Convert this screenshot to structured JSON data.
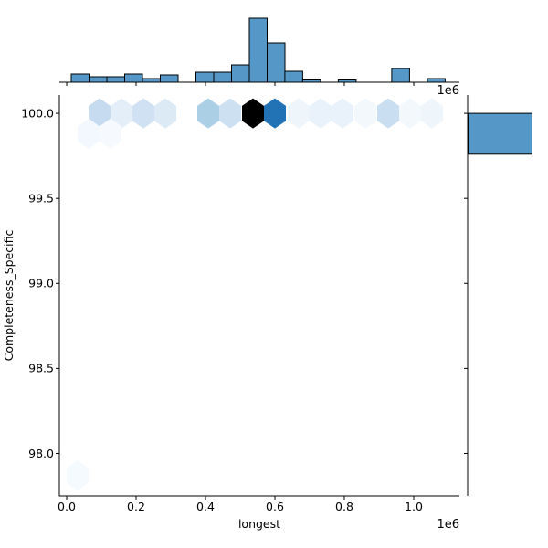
{
  "colors": {
    "bar_fill": "#5598c8",
    "bar_edge": "#000000",
    "axis_line": "#000000",
    "text": "#000000",
    "background": "#ffffff"
  },
  "axes": {
    "xlabel": "longest",
    "ylabel": "Completeness_Specific",
    "offset_label": "1e6",
    "x_ticks": [
      0,
      200000,
      400000,
      600000,
      800000,
      1000000
    ],
    "x_tick_labels": [
      "0.0",
      "0.2",
      "0.4",
      "0.6",
      "0.8",
      "1.0"
    ],
    "y_ticks": [
      100.0,
      99.5,
      99.0,
      98.5,
      98.0
    ],
    "y_tick_labels": [
      "100.0",
      "99.5",
      "99.0",
      "98.5",
      "98.0"
    ],
    "xlim": [
      -21100,
      1131600
    ],
    "ylim": [
      97.75,
      100.108
    ]
  },
  "chart_data": [
    {
      "type": "hexbin",
      "role": "joint-plot",
      "xlabel": "longest",
      "ylabel": "Completeness_Specific",
      "colormap": "light-blue-to-dark (Blues-like), darkest cell near-black",
      "points": [
        {
          "x": 94700,
          "y": 100.0,
          "color": "#c6dbef",
          "intensity": 0.33
        },
        {
          "x": 157900,
          "y": 100.0,
          "color": "#e4eef9",
          "intensity": 0.16
        },
        {
          "x": 221100,
          "y": 100.0,
          "color": "#cfe1f2",
          "intensity": 0.3
        },
        {
          "x": 284200,
          "y": 100.0,
          "color": "#dceaf6",
          "intensity": 0.23
        },
        {
          "x": 407900,
          "y": 100.0,
          "color": "#abd0e6",
          "intensity": 0.42
        },
        {
          "x": 471100,
          "y": 100.0,
          "color": "#cde0f1",
          "intensity": 0.31
        },
        {
          "x": 536800,
          "y": 100.0,
          "color": "#000000",
          "intensity": 1.0
        },
        {
          "x": 600000,
          "y": 100.0,
          "color": "#2272b6",
          "intensity": 0.78
        },
        {
          "x": 668400,
          "y": 100.0,
          "color": "#eef5fb",
          "intensity": 0.1
        },
        {
          "x": 731600,
          "y": 100.0,
          "color": "#e9f2fa",
          "intensity": 0.14
        },
        {
          "x": 794700,
          "y": 100.0,
          "color": "#e9f2fa",
          "intensity": 0.14
        },
        {
          "x": 860500,
          "y": 100.0,
          "color": "#f3f8fd",
          "intensity": 0.05
        },
        {
          "x": 926300,
          "y": 100.0,
          "color": "#c9def1",
          "intensity": 0.32
        },
        {
          "x": 989500,
          "y": 100.0,
          "color": "#f3f8fd",
          "intensity": 0.05
        },
        {
          "x": 1052600,
          "y": 100.0,
          "color": "#eef5fb",
          "intensity": 0.1
        },
        {
          "x": 63200,
          "y": 99.88,
          "color": "#f2f8fd",
          "intensity": 0.06
        },
        {
          "x": 126300,
          "y": 99.88,
          "color": "#f6fafe",
          "intensity": 0.03
        },
        {
          "x": 31600,
          "y": 97.87,
          "color": "#f5fafe",
          "intensity": 0.04
        }
      ]
    },
    {
      "type": "bar",
      "role": "marginal-x-histogram",
      "units": "relative-height",
      "bin_start": 13200,
      "bin_width": 51300,
      "heights": [
        9,
        6,
        6,
        9,
        4,
        8,
        0,
        11,
        11,
        19,
        70,
        43,
        12,
        2.5,
        0,
        2.5,
        0,
        0,
        15,
        0,
        4
      ]
    },
    {
      "type": "bar",
      "role": "marginal-y-histogram",
      "units": "relative-width",
      "bars": [
        {
          "y_from": 99.76,
          "y_to": 100.0,
          "width": 70
        }
      ]
    }
  ]
}
